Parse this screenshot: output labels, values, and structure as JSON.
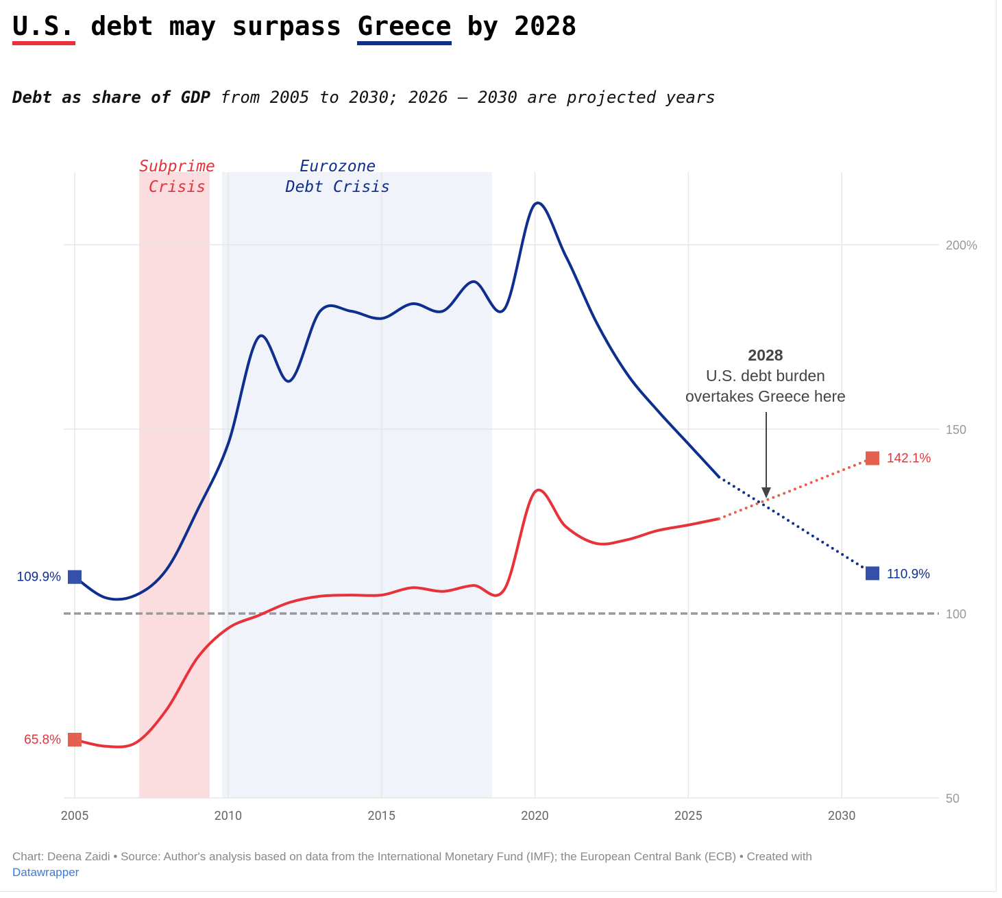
{
  "title": {
    "pre": "",
    "us": "U.S.",
    "mid": " debt may surpass ",
    "greece": "Greece",
    "post": " by 2028"
  },
  "subtitle": {
    "bold": "Debt as share of GDP",
    "rest": " from 2005 to 2030; 2026 – 2030 are projected years"
  },
  "footer": {
    "text": "Chart: Deena Zaidi • Source: Author's analysis based on data from the International Monetary Fund (IMF); the European Central Bank (ECB) • Created with",
    "link": "Datawrapper"
  },
  "colors": {
    "us": "#e8323a",
    "us_projected": "#e5604f",
    "greece": "#0e2f8e",
    "greece_marker": "#3450a8",
    "subprime_band": "#fbdde0",
    "eurozone_band": "#f1f3fb",
    "reference_line": "#9a9a9a"
  },
  "chart_data": {
    "type": "line",
    "x": [
      2005,
      2006,
      2007,
      2008,
      2009,
      2010,
      2011,
      2012,
      2013,
      2014,
      2015,
      2016,
      2017,
      2018,
      2019,
      2020,
      2021,
      2022,
      2023,
      2024,
      2025,
      2026,
      2027,
      2028,
      2029,
      2030,
      2031
    ],
    "projection_start": 2026,
    "series": [
      {
        "key": "greece",
        "values": [
          109.9,
          104.3,
          105,
          112,
          128,
          146,
          175,
          163,
          182,
          182,
          180,
          184,
          182,
          190,
          182.5,
          211,
          197,
          179,
          165,
          155,
          146,
          137,
          131.8,
          126.6,
          121.3,
          116.1,
          110.9
        ]
      },
      {
        "key": "us",
        "values": [
          65.8,
          64,
          65,
          74,
          88,
          96,
          99.5,
          103,
          104.7,
          105,
          105,
          107,
          106,
          107.6,
          106.5,
          133,
          123.6,
          119,
          120,
          122.5,
          124,
          125.7,
          129,
          132.2,
          135.5,
          138.8,
          142.1
        ]
      }
    ],
    "end_labels": {
      "greece_start": "109.9%",
      "greece_end": "110.9%",
      "us_start": "65.8%",
      "us_end": "142.1%"
    },
    "xlim": [
      2005,
      2031
    ],
    "ylim": [
      50,
      210
    ],
    "x_ticks": [
      "2005",
      "2010",
      "2015",
      "2020",
      "2025",
      "2030"
    ],
    "y_ticks": [
      "50",
      "100",
      "150",
      "200%"
    ],
    "reference_line": 100,
    "grid": true,
    "bands": [
      {
        "label_line1": "Subprime",
        "label_line2": "Crisis",
        "from": 2007.1,
        "to": 2009.4
      },
      {
        "label_line1": "Eurozone",
        "label_line2": "Debt Crisis",
        "from": 2009.8,
        "to": 2018.6
      }
    ],
    "annotation": {
      "heading": "2028",
      "line1": "U.S. debt burden",
      "line2": "overtakes Greece here",
      "x": 2027.5
    }
  }
}
